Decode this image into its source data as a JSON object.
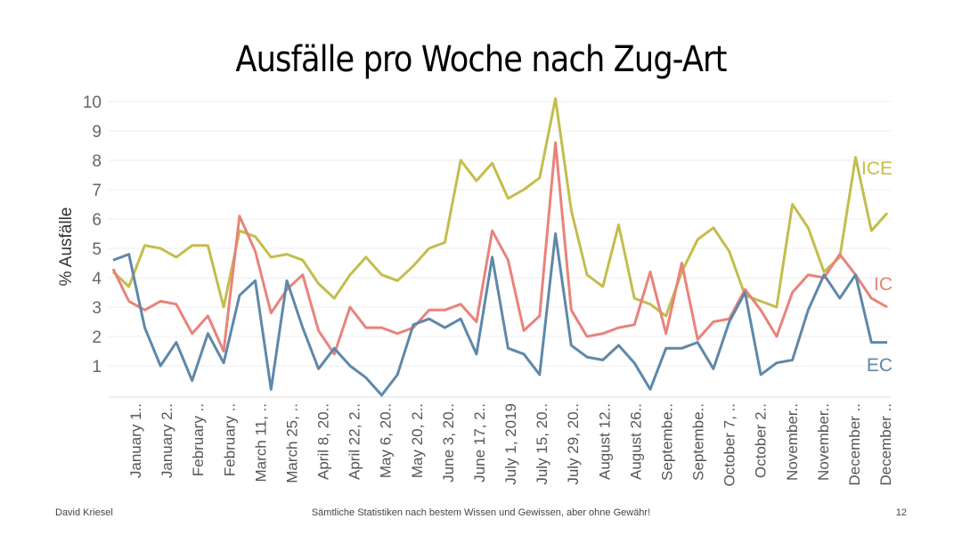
{
  "chart_data": {
    "type": "line",
    "title": "Ausfälle pro Woche nach Zug-Art",
    "ylabel": "% Ausfälle",
    "xlabel": "",
    "ylim": [
      0,
      10
    ],
    "yticks": [
      1,
      2,
      3,
      4,
      5,
      6,
      7,
      8,
      9,
      10
    ],
    "x_tick_labels": [
      "January 1..",
      "January 2..",
      "February ..",
      "February ..",
      "March 11, ..",
      "March 25, ..",
      "April 8, 20..",
      "April 22, 2..",
      "May 6, 20..",
      "May 20, 2..",
      "June 3, 20..",
      "June 17, 2..",
      "July 1, 2019",
      "July 15, 20..",
      "July 29, 20..",
      "August 12..",
      "August 26..",
      "Septembe..",
      "Septembe..",
      "October 7, ..",
      "October 2..",
      "November..",
      "November..",
      "December ..",
      "December .."
    ],
    "grid": "horizontal",
    "series": [
      {
        "name": "ICE",
        "color": "#c3bd4c",
        "values": [
          4.2,
          3.7,
          5.1,
          5.0,
          4.7,
          5.1,
          5.1,
          3.0,
          5.6,
          5.4,
          4.7,
          4.8,
          4.6,
          3.8,
          3.3,
          4.1,
          4.7,
          4.1,
          3.9,
          4.4,
          5.0,
          5.2,
          8.0,
          7.3,
          7.9,
          6.7,
          7.0,
          7.4,
          10.1,
          6.3,
          4.1,
          3.7,
          5.8,
          3.3,
          3.1,
          2.7,
          4.2,
          5.3,
          5.7,
          4.9,
          3.4,
          3.2,
          3.0,
          6.5,
          5.7,
          4.2,
          4.7,
          8.1,
          5.6,
          6.2
        ]
      },
      {
        "name": "IC",
        "color": "#e8837a",
        "values": [
          4.3,
          3.2,
          2.9,
          3.2,
          3.1,
          2.1,
          2.7,
          1.5,
          6.1,
          4.9,
          2.8,
          3.6,
          4.1,
          2.2,
          1.4,
          3.0,
          2.3,
          2.3,
          2.1,
          2.3,
          2.9,
          2.9,
          3.1,
          2.5,
          5.6,
          4.6,
          2.2,
          2.7,
          8.6,
          2.9,
          2.0,
          2.1,
          2.3,
          2.4,
          4.2,
          2.1,
          4.5,
          1.9,
          2.5,
          2.6,
          3.6,
          2.9,
          2.0,
          3.5,
          4.1,
          4.0,
          4.8,
          4.1,
          3.3,
          3.0
        ]
      },
      {
        "name": "EC",
        "color": "#5e88aa",
        "values": [
          4.6,
          4.8,
          2.3,
          1.0,
          1.8,
          0.5,
          2.1,
          1.1,
          3.4,
          3.9,
          0.2,
          3.9,
          2.3,
          0.9,
          1.6,
          1.0,
          0.6,
          0.0,
          0.7,
          2.4,
          2.6,
          2.3,
          2.6,
          1.4,
          4.7,
          1.6,
          1.4,
          0.7,
          5.5,
          1.7,
          1.3,
          1.2,
          1.7,
          1.1,
          0.2,
          1.6,
          1.6,
          1.8,
          0.9,
          2.5,
          3.5,
          0.7,
          1.1,
          1.2,
          2.9,
          4.1,
          3.3,
          4.1,
          1.8,
          1.8
        ]
      }
    ]
  },
  "footer": {
    "left": "David Kriesel",
    "center": "Sämtliche Statistiken nach bestem Wissen und Gewissen, aber ohne Gewähr!",
    "right": "12"
  }
}
